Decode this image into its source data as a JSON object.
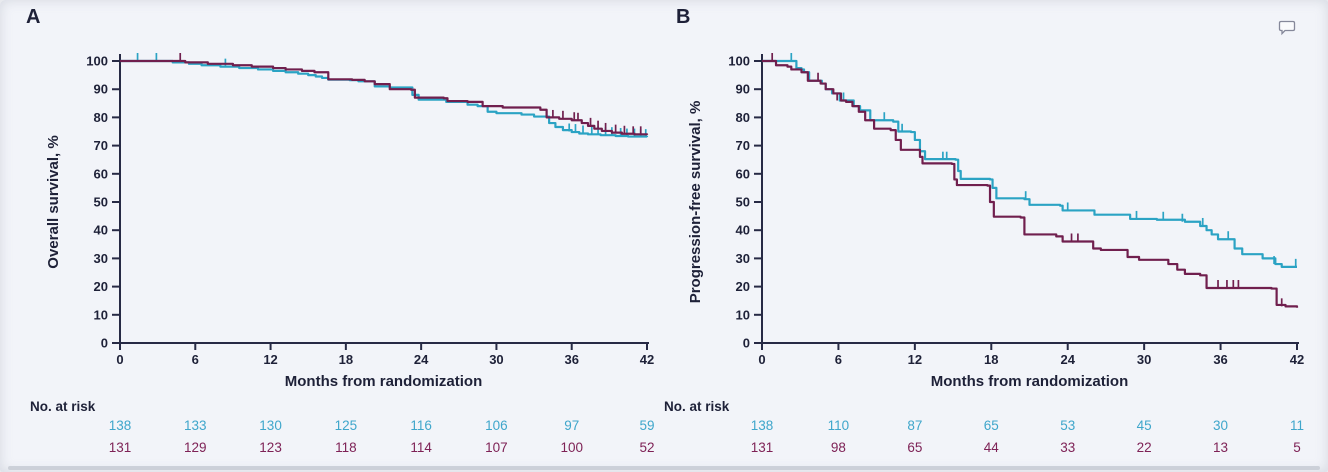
{
  "figure": {
    "colors": {
      "background": "#f2f4f9",
      "axis": "#272a45",
      "text": "#1e2138",
      "teal": "#2ba3c4",
      "maroon": "#701f4e",
      "teal_number": "#3fa6cb",
      "maroon_number": "#7e2256",
      "edge": "#c7cbd3",
      "icon": "#85889a"
    },
    "icons": {
      "comment": "speech-bubble"
    }
  },
  "chart_data": [
    {
      "type": "line",
      "subtype": "kaplan-meier-step",
      "letter": "A",
      "y_label": "Overall survival, %",
      "x_label": "Months from randomization",
      "risk_label": "No. at risk",
      "x_ticks": [
        0,
        6,
        12,
        18,
        24,
        30,
        36,
        42
      ],
      "y_ticks": [
        0,
        10,
        20,
        30,
        40,
        50,
        60,
        70,
        80,
        90,
        100
      ],
      "xlim": [
        0,
        42
      ],
      "ylim": [
        0,
        100
      ],
      "grid": false,
      "legend": "none",
      "series": [
        {
          "name": "arm-1-teal",
          "color": "#2ba3c4",
          "number_color": "#3fa6cb",
          "at_risk": [
            138,
            133,
            130,
            125,
            116,
            106,
            97,
            59
          ],
          "steps": [
            [
              0,
              100
            ],
            [
              3.5,
              100
            ],
            [
              4.2,
              99.5
            ],
            [
              5.5,
              99
            ],
            [
              6.5,
              98.5
            ],
            [
              8,
              98
            ],
            [
              9.5,
              97.5
            ],
            [
              11,
              97
            ],
            [
              12.2,
              96.5
            ],
            [
              13.2,
              96
            ],
            [
              14.2,
              95.5
            ],
            [
              15,
              95
            ],
            [
              15.6,
              94.5
            ],
            [
              16.1,
              94
            ],
            [
              16.6,
              93.4
            ],
            [
              18.3,
              93.2
            ],
            [
              19,
              92.8
            ],
            [
              20.3,
              91
            ],
            [
              21.5,
              90.6
            ],
            [
              23.3,
              88
            ],
            [
              23.8,
              86.3
            ],
            [
              26,
              85.5
            ],
            [
              27.7,
              84.5
            ],
            [
              28.5,
              84
            ],
            [
              29.3,
              82
            ],
            [
              30,
              81.5
            ],
            [
              32,
              81
            ],
            [
              33,
              80.3
            ],
            [
              34.2,
              78
            ],
            [
              34.7,
              76.6
            ],
            [
              35.3,
              75.5
            ],
            [
              36,
              74.8
            ],
            [
              36.6,
              74.3
            ],
            [
              37.3,
              74
            ],
            [
              38.3,
              73.7
            ],
            [
              39.5,
              73.4
            ],
            [
              40.5,
              73.2
            ],
            [
              42,
              73
            ]
          ],
          "censors": [
            [
              1.4,
              100
            ],
            [
              2.9,
              100
            ],
            [
              8.4,
              98
            ],
            [
              35.8,
              75
            ],
            [
              36.3,
              74.8
            ],
            [
              36.9,
              74.3
            ],
            [
              37.6,
              74
            ],
            [
              38.1,
              74
            ],
            [
              38.7,
              73.7
            ],
            [
              39.2,
              73.7
            ],
            [
              39.9,
              73.4
            ],
            [
              40.4,
              73.2
            ],
            [
              41,
              73.2
            ],
            [
              41.5,
              73
            ],
            [
              41.9,
              73
            ]
          ]
        },
        {
          "name": "arm-2-maroon",
          "color": "#701f4e",
          "number_color": "#7e2256",
          "at_risk": [
            131,
            129,
            123,
            118,
            114,
            107,
            100,
            52
          ],
          "steps": [
            [
              0,
              100
            ],
            [
              4.5,
              100
            ],
            [
              5.2,
              99.5
            ],
            [
              7,
              99
            ],
            [
              9,
              98.5
            ],
            [
              10.5,
              98
            ],
            [
              12.2,
              97.5
            ],
            [
              13.2,
              97
            ],
            [
              14.5,
              96.5
            ],
            [
              15.5,
              96
            ],
            [
              16.6,
              93.5
            ],
            [
              18.5,
              93.3
            ],
            [
              19.5,
              92.8
            ],
            [
              20.3,
              91.8
            ],
            [
              21.5,
              90
            ],
            [
              23.2,
              89.8
            ],
            [
              23.5,
              87
            ],
            [
              25.8,
              86.8
            ],
            [
              26.1,
              85.8
            ],
            [
              27.7,
              85.5
            ],
            [
              28.9,
              84
            ],
            [
              30.5,
              83.5
            ],
            [
              33.5,
              82.7
            ],
            [
              34,
              80
            ],
            [
              35,
              79.5
            ],
            [
              36,
              79
            ],
            [
              36.8,
              78
            ],
            [
              37.3,
              77
            ],
            [
              37.8,
              76
            ],
            [
              38.4,
              75.2
            ],
            [
              39.2,
              74.6
            ],
            [
              40,
              74.2
            ],
            [
              41,
              74
            ],
            [
              42,
              73.8
            ]
          ],
          "censors": [
            [
              4.8,
              100
            ],
            [
              34.5,
              79.8
            ],
            [
              35.3,
              79.5
            ],
            [
              36.2,
              79
            ],
            [
              36.5,
              78.8
            ],
            [
              37.5,
              77
            ],
            [
              38.1,
              76
            ],
            [
              38.7,
              75.2
            ],
            [
              39.5,
              74.6
            ],
            [
              40.2,
              74.2
            ],
            [
              40.9,
              74
            ],
            [
              41.5,
              74
            ]
          ]
        }
      ]
    },
    {
      "type": "line",
      "subtype": "kaplan-meier-step",
      "letter": "B",
      "y_label": "Progression-free survival, %",
      "x_label": "Months from randomization",
      "risk_label": "No. at risk",
      "x_ticks": [
        0,
        6,
        12,
        18,
        24,
        30,
        36,
        42
      ],
      "y_ticks": [
        0,
        10,
        20,
        30,
        40,
        50,
        60,
        70,
        80,
        90,
        100
      ],
      "xlim": [
        0,
        42
      ],
      "ylim": [
        0,
        100
      ],
      "grid": false,
      "legend": "none",
      "series": [
        {
          "name": "arm-1-teal",
          "color": "#2ba3c4",
          "number_color": "#3fa6cb",
          "at_risk": [
            138,
            110,
            87,
            65,
            53,
            45,
            30,
            11
          ],
          "steps": [
            [
              0,
              100
            ],
            [
              2.5,
              100
            ],
            [
              2.7,
              97.5
            ],
            [
              3.1,
              97
            ],
            [
              3.3,
              96
            ],
            [
              3.7,
              93
            ],
            [
              4.7,
              92
            ],
            [
              5,
              90
            ],
            [
              5.5,
              88.5
            ],
            [
              6.1,
              86
            ],
            [
              7.2,
              84
            ],
            [
              7.7,
              82.5
            ],
            [
              8.5,
              79
            ],
            [
              10.3,
              78.5
            ],
            [
              10.7,
              75
            ],
            [
              11.7,
              74.8
            ],
            [
              12,
              72
            ],
            [
              12.4,
              68
            ],
            [
              12.8,
              65.2
            ],
            [
              15.2,
              65
            ],
            [
              15.4,
              61
            ],
            [
              15.6,
              58.2
            ],
            [
              17.9,
              58
            ],
            [
              18.1,
              55
            ],
            [
              18.4,
              51.3
            ],
            [
              20.6,
              51
            ],
            [
              21,
              49
            ],
            [
              23.4,
              48.7
            ],
            [
              23.6,
              47
            ],
            [
              26.1,
              45.5
            ],
            [
              28.9,
              44
            ],
            [
              31,
              43.7
            ],
            [
              33.2,
              43
            ],
            [
              34.4,
              41.5
            ],
            [
              34.9,
              40
            ],
            [
              35.3,
              38.5
            ],
            [
              35.8,
              36.8
            ],
            [
              37.1,
              33.5
            ],
            [
              37.7,
              31.5
            ],
            [
              39.3,
              30
            ],
            [
              40.3,
              28
            ],
            [
              40.8,
              27
            ],
            [
              42,
              27
            ]
          ],
          "censors": [
            [
              2.3,
              100
            ],
            [
              6.4,
              86
            ],
            [
              9.6,
              79
            ],
            [
              11,
              74.9
            ],
            [
              14.2,
              65
            ],
            [
              14.5,
              65
            ],
            [
              20.7,
              51
            ],
            [
              24,
              47
            ],
            [
              29.4,
              44
            ],
            [
              31.5,
              43.7
            ],
            [
              33,
              43
            ],
            [
              34.6,
              41.5
            ],
            [
              36.6,
              36.8
            ],
            [
              40.2,
              28
            ],
            [
              41.9,
              27
            ]
          ]
        },
        {
          "name": "arm-2-maroon",
          "color": "#701f4e",
          "number_color": "#7e2256",
          "at_risk": [
            131,
            98,
            65,
            44,
            33,
            22,
            13,
            5
          ],
          "steps": [
            [
              0,
              100
            ],
            [
              0.9,
              100
            ],
            [
              1.1,
              98.5
            ],
            [
              2,
              98
            ],
            [
              2.3,
              97
            ],
            [
              3.1,
              96
            ],
            [
              3.6,
              93
            ],
            [
              4.6,
              92
            ],
            [
              5,
              90
            ],
            [
              5.6,
              88.5
            ],
            [
              6.2,
              86
            ],
            [
              6.6,
              85.5
            ],
            [
              7.1,
              84
            ],
            [
              7.6,
              82
            ],
            [
              8.1,
              79
            ],
            [
              8.8,
              76
            ],
            [
              10.1,
              75.5
            ],
            [
              10.5,
              72
            ],
            [
              10.9,
              68.5
            ],
            [
              12.4,
              66
            ],
            [
              12.6,
              63.7
            ],
            [
              14.9,
              63.5
            ],
            [
              15.1,
              58
            ],
            [
              15.3,
              56
            ],
            [
              17.7,
              55.8
            ],
            [
              17.9,
              50
            ],
            [
              18.2,
              44.8
            ],
            [
              20.3,
              44.5
            ],
            [
              20.6,
              38.5
            ],
            [
              23.1,
              37.8
            ],
            [
              23.6,
              36
            ],
            [
              26,
              33.5
            ],
            [
              26.6,
              33
            ],
            [
              28.7,
              30.5
            ],
            [
              29.6,
              29.5
            ],
            [
              31.9,
              28
            ],
            [
              32.6,
              26
            ],
            [
              33.2,
              24.5
            ],
            [
              34.4,
              24
            ],
            [
              34.9,
              19.5
            ],
            [
              40,
              19.3
            ],
            [
              40.4,
              13.5
            ],
            [
              41.1,
              13
            ],
            [
              42,
              12.5
            ]
          ],
          "censors": [
            [
              0.8,
              100
            ],
            [
              4.4,
              93
            ],
            [
              5.9,
              86
            ],
            [
              24.3,
              36
            ],
            [
              24.8,
              36
            ],
            [
              35.8,
              19.5
            ],
            [
              36.5,
              19.5
            ],
            [
              37,
              19.5
            ],
            [
              37.4,
              19.5
            ],
            [
              40.8,
              13
            ]
          ]
        }
      ]
    }
  ]
}
